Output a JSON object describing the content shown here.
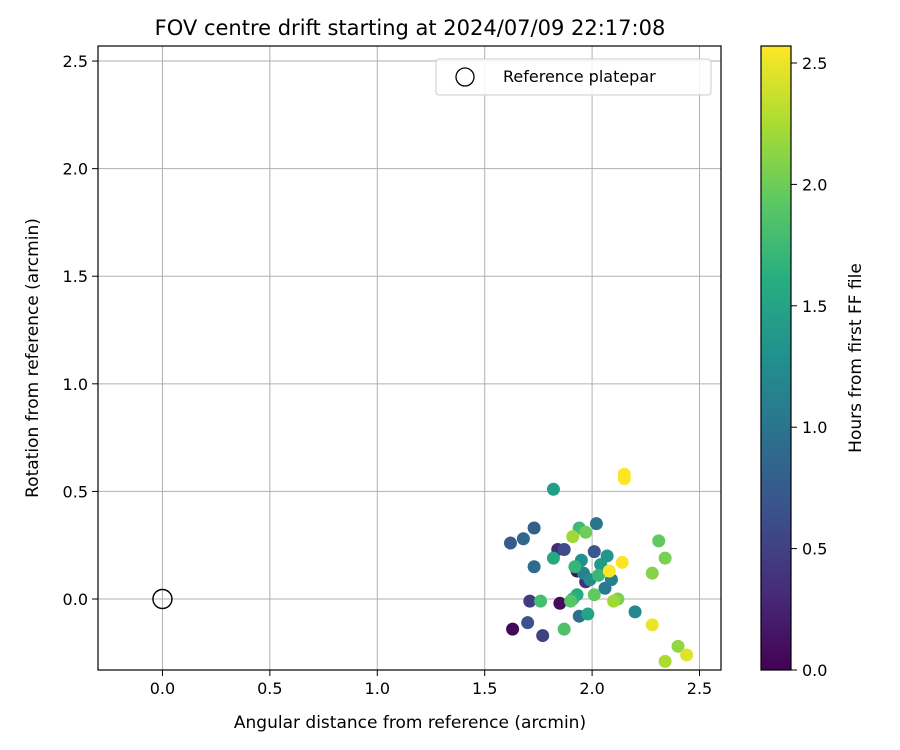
{
  "chart_data": {
    "type": "scatter",
    "title": "FOV centre drift starting at 2024/07/09 22:17:08",
    "xlabel": "Angular distance from reference (arcmin)",
    "ylabel": "Rotation from reference (arcmin)",
    "xlim": [
      -0.3,
      2.6
    ],
    "ylim": [
      -0.33,
      2.57
    ],
    "xticks": [
      "0.0",
      "0.5",
      "1.0",
      "1.5",
      "2.0",
      "2.5"
    ],
    "yticks": [
      "0.0",
      "0.5",
      "1.0",
      "1.5",
      "2.0",
      "2.5"
    ],
    "grid": true,
    "legend": {
      "placement": "top-right",
      "entries": [
        "Reference platepar"
      ]
    },
    "reference_point": {
      "x": 0.0,
      "y": 0.0,
      "marker": "open-circle"
    },
    "colorbar": {
      "label": "Hours from first FF file",
      "range": [
        0.0,
        2.57
      ],
      "ticks": [
        "0.0",
        "0.5",
        "1.0",
        "1.5",
        "2.0",
        "2.5"
      ],
      "colormap": "viridis"
    },
    "points": [
      {
        "x": 1.63,
        "y": -0.14,
        "c": 0.05
      },
      {
        "x": 1.85,
        "y": -0.02,
        "c": 0.08
      },
      {
        "x": 1.93,
        "y": 0.13,
        "c": 0.1
      },
      {
        "x": 1.84,
        "y": 0.23,
        "c": 0.3
      },
      {
        "x": 1.97,
        "y": 0.08,
        "c": 0.35
      },
      {
        "x": 1.71,
        "y": -0.01,
        "c": 0.45
      },
      {
        "x": 1.77,
        "y": -0.17,
        "c": 0.5
      },
      {
        "x": 1.87,
        "y": 0.23,
        "c": 0.6
      },
      {
        "x": 1.7,
        "y": -0.11,
        "c": 0.65
      },
      {
        "x": 2.01,
        "y": 0.22,
        "c": 0.7
      },
      {
        "x": 1.62,
        "y": 0.26,
        "c": 0.75
      },
      {
        "x": 1.73,
        "y": 0.33,
        "c": 0.8
      },
      {
        "x": 1.68,
        "y": 0.28,
        "c": 0.85
      },
      {
        "x": 1.73,
        "y": 0.15,
        "c": 0.9
      },
      {
        "x": 1.94,
        "y": -0.08,
        "c": 0.95
      },
      {
        "x": 2.02,
        "y": 0.35,
        "c": 1.0
      },
      {
        "x": 2.06,
        "y": 0.05,
        "c": 1.05
      },
      {
        "x": 2.09,
        "y": 0.09,
        "c": 1.1
      },
      {
        "x": 1.96,
        "y": 0.12,
        "c": 1.15
      },
      {
        "x": 2.2,
        "y": -0.06,
        "c": 1.2
      },
      {
        "x": 1.99,
        "y": 0.09,
        "c": 1.25
      },
      {
        "x": 1.95,
        "y": 0.18,
        "c": 1.3
      },
      {
        "x": 2.07,
        "y": 0.2,
        "c": 1.35
      },
      {
        "x": 2.04,
        "y": 0.16,
        "c": 1.4
      },
      {
        "x": 1.82,
        "y": 0.51,
        "c": 1.45
      },
      {
        "x": 1.98,
        "y": -0.07,
        "c": 1.5
      },
      {
        "x": 1.82,
        "y": 0.19,
        "c": 1.55
      },
      {
        "x": 1.93,
        "y": 0.02,
        "c": 1.6
      },
      {
        "x": 1.91,
        "y": 0.0,
        "c": 1.65
      },
      {
        "x": 1.92,
        "y": 0.15,
        "c": 1.7
      },
      {
        "x": 2.03,
        "y": 0.11,
        "c": 1.72
      },
      {
        "x": 1.94,
        "y": 0.33,
        "c": 1.75
      },
      {
        "x": 1.76,
        "y": -0.01,
        "c": 1.8
      },
      {
        "x": 1.87,
        "y": -0.14,
        "c": 1.85
      },
      {
        "x": 1.9,
        "y": -0.01,
        "c": 1.9
      },
      {
        "x": 2.01,
        "y": 0.02,
        "c": 1.95
      },
      {
        "x": 2.31,
        "y": 0.27,
        "c": 1.95
      },
      {
        "x": 1.97,
        "y": 0.31,
        "c": 2.0
      },
      {
        "x": 2.12,
        "y": 0.0,
        "c": 2.05
      },
      {
        "x": 2.34,
        "y": 0.19,
        "c": 2.05
      },
      {
        "x": 2.28,
        "y": 0.12,
        "c": 2.1
      },
      {
        "x": 2.4,
        "y": -0.22,
        "c": 2.15
      },
      {
        "x": 2.1,
        "y": -0.01,
        "c": 2.2
      },
      {
        "x": 1.91,
        "y": 0.29,
        "c": 2.2
      },
      {
        "x": 2.34,
        "y": -0.29,
        "c": 2.25
      },
      {
        "x": 2.44,
        "y": -0.26,
        "c": 2.45
      },
      {
        "x": 2.28,
        "y": -0.12,
        "c": 2.5
      },
      {
        "x": 2.14,
        "y": 0.17,
        "c": 2.55
      },
      {
        "x": 2.15,
        "y": 0.56,
        "c": 2.56
      },
      {
        "x": 2.15,
        "y": 0.58,
        "c": 2.57
      },
      {
        "x": 2.08,
        "y": 0.13,
        "c": 2.57
      }
    ]
  }
}
